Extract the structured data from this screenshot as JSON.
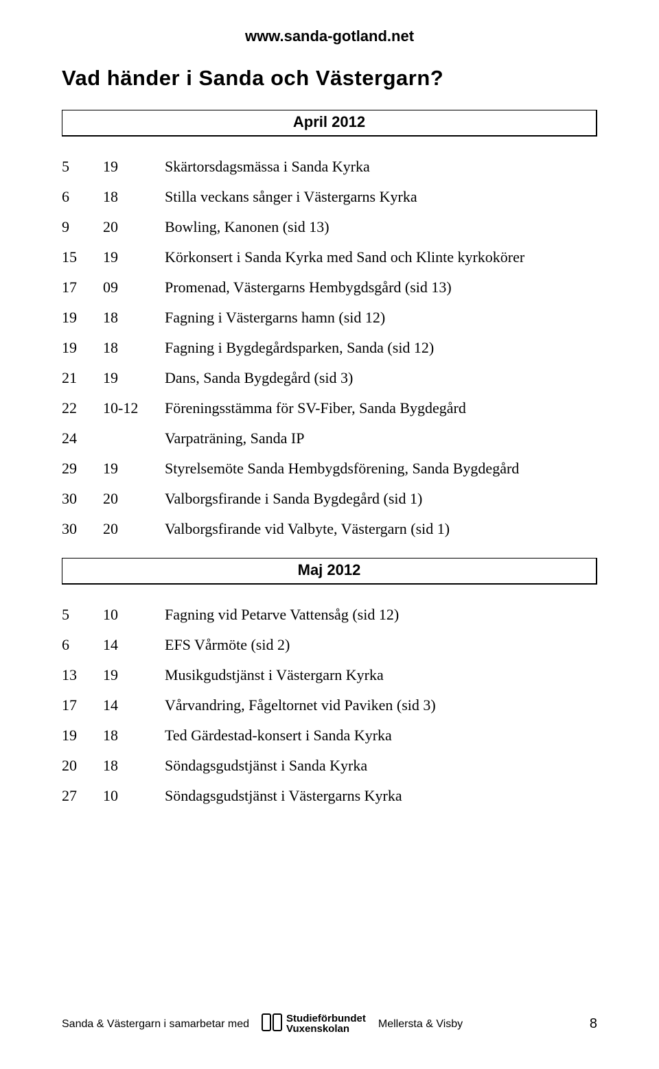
{
  "site_url": "www.sanda-gotland.net",
  "page_title": "Vad händer i Sanda och Västergarn?",
  "months": [
    {
      "name": "April 2012",
      "events": [
        {
          "day": "5",
          "time": "19",
          "desc": "Skärtorsdagsmässa i Sanda Kyrka"
        },
        {
          "day": "6",
          "time": "18",
          "desc": "Stilla veckans sånger i Västergarns Kyrka"
        },
        {
          "day": "9",
          "time": "20",
          "desc": "Bowling, Kanonen (sid 13)"
        },
        {
          "day": "15",
          "time": "19",
          "desc": "Körkonsert i Sanda Kyrka med Sand och Klinte kyrkokörer"
        },
        {
          "day": "17",
          "time": "09",
          "desc": "Promenad, Västergarns Hembygdsgård (sid 13)"
        },
        {
          "day": "19",
          "time": "18",
          "desc": "Fagning i Västergarns hamn (sid 12)"
        },
        {
          "day": "19",
          "time": "18",
          "desc": "Fagning i Bygdegårdsparken, Sanda (sid 12)"
        },
        {
          "day": "21",
          "time": "19",
          "desc": "Dans, Sanda Bygdegård (sid 3)"
        },
        {
          "day": "22",
          "time": "10-12",
          "desc": "Föreningsstämma för SV-Fiber, Sanda Bygdegård"
        },
        {
          "day": "24",
          "time": "",
          "desc": "Varpaträning, Sanda IP"
        },
        {
          "day": "29",
          "time": "19",
          "desc": "Styrelsemöte Sanda Hembygdsförening, Sanda Bygdegård"
        },
        {
          "day": "30",
          "time": "20",
          "desc": "Valborgsfirande i Sanda Bygdegård (sid 1)"
        },
        {
          "day": "30",
          "time": "20",
          "desc": "Valborgsfirande vid Valbyte, Västergarn (sid 1)"
        }
      ]
    },
    {
      "name": "Maj 2012",
      "events": [
        {
          "day": "5",
          "time": "10",
          "desc": "Fagning vid Petarve Vattensåg (sid 12)"
        },
        {
          "day": "6",
          "time": "14",
          "desc": "EFS Vårmöte (sid 2)"
        },
        {
          "day": "13",
          "time": "19",
          "desc": "Musikgudstjänst i Västergarn Kyrka"
        },
        {
          "day": "17",
          "time": "14",
          "desc": "Vårvandring, Fågeltornet vid Paviken (sid 3)"
        },
        {
          "day": "19",
          "time": "18",
          "desc": "Ted Gärdestad-konsert i Sanda Kyrka"
        },
        {
          "day": "20",
          "time": "18",
          "desc": "Söndagsgudstjänst i Sanda Kyrka"
        },
        {
          "day": "27",
          "time": "10",
          "desc": "Söndagsgudstjänst i Västergarns Kyrka"
        }
      ]
    }
  ],
  "footer": {
    "left_text": "Sanda & Västergarn i samarbetar med",
    "logo_top": "Studieförbundet",
    "logo_bottom": "Vuxenskolan",
    "right_text": "Mellersta & Visby",
    "page_number": "8"
  }
}
